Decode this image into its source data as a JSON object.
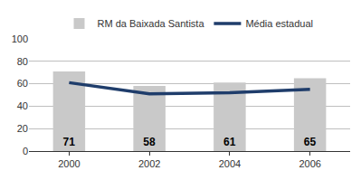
{
  "chart_data": {
    "type": "bar",
    "categories": [
      "2000",
      "2002",
      "2004",
      "2006"
    ],
    "series": [
      {
        "name": "RM da Baixada Santista",
        "type": "bar",
        "color": "#c9c9c9",
        "values": [
          71,
          58,
          61,
          65
        ],
        "data_labels": true
      },
      {
        "name": "Média estadual",
        "type": "line",
        "color": "#1f3d6b",
        "values": [
          61,
          51,
          52,
          55
        ]
      }
    ],
    "ylim": [
      0,
      100
    ],
    "yticks": [
      0,
      20,
      40,
      60,
      80,
      100
    ],
    "grid": true,
    "legend": "top"
  }
}
